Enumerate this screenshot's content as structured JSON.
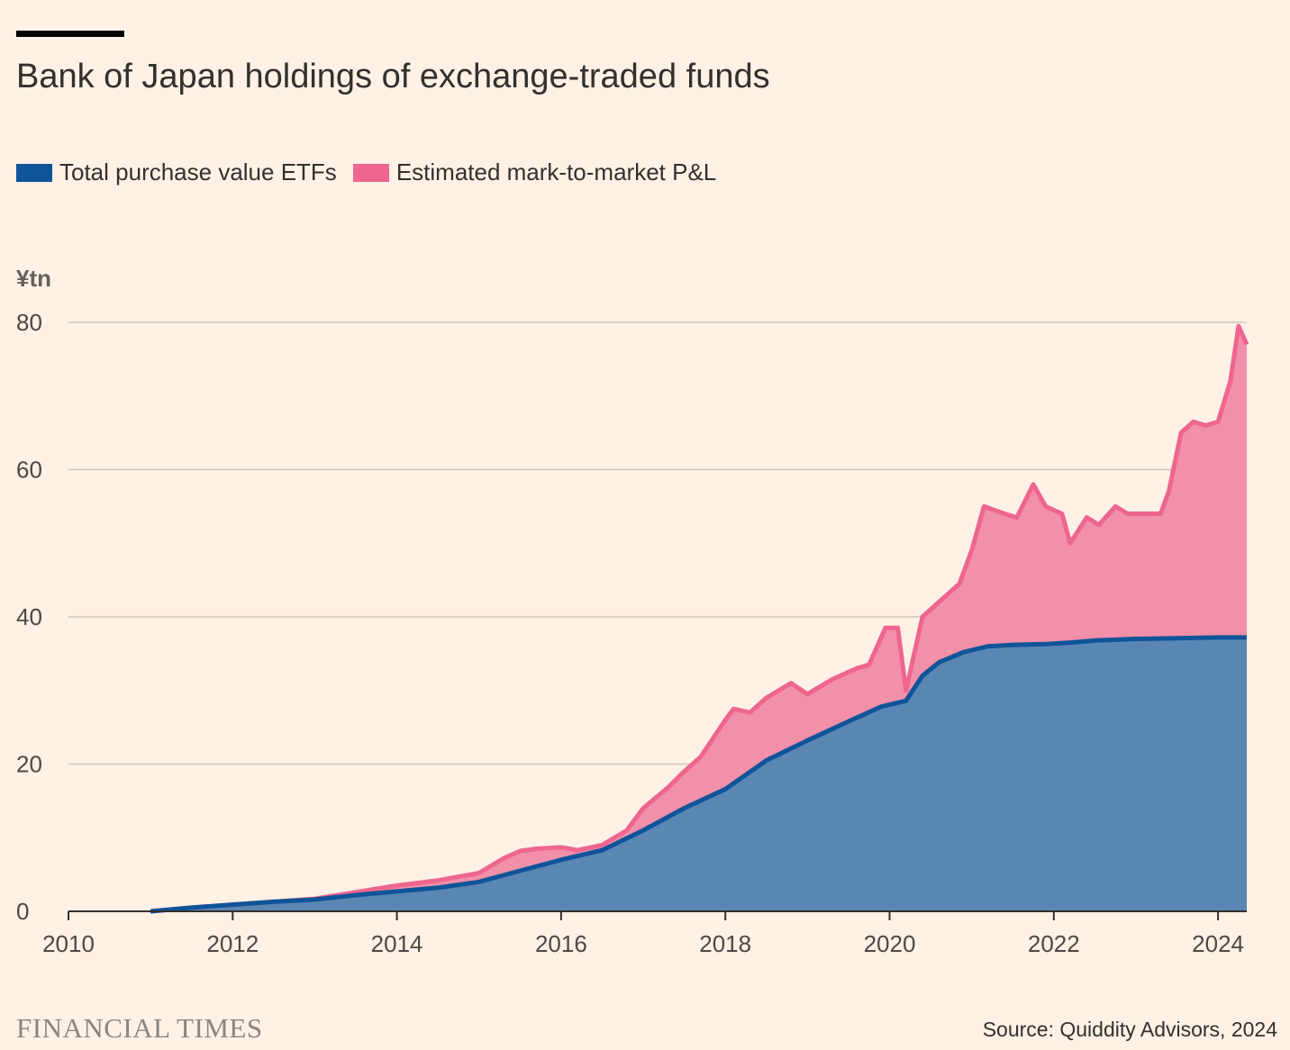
{
  "title": "Bank of Japan holdings of exchange-traded funds",
  "legend": {
    "purchase_label": "Total purchase value ETFs",
    "pnl_label": "Estimated mark-to-market P&L"
  },
  "colors": {
    "background": "#FFF1E5",
    "purchase_fill": "#5A86B3",
    "purchase_line": "#0F5499",
    "pnl_fill": "#F28FA9",
    "pnl_line": "#EE6690",
    "grid": "#CEC6B9",
    "axis": "#33302E"
  },
  "source": "Source: Quiddity Advisors, 2024",
  "brand": "FINANCIAL TIMES",
  "chart_data": {
    "type": "area",
    "ylabel": "¥tn",
    "xlabel": "",
    "ylim": [
      0,
      80
    ],
    "xlim": [
      2010,
      2024.35
    ],
    "yticks": [
      0,
      20,
      40,
      60,
      80
    ],
    "xticks": [
      2010,
      2012,
      2014,
      2016,
      2018,
      2020,
      2022,
      2024
    ],
    "grid": true,
    "legend_position": "top-left",
    "stacked": false,
    "series": [
      {
        "name": "Total purchase value ETFs",
        "x": [
          2011.0,
          2011.5,
          2012.0,
          2012.5,
          2013.0,
          2013.5,
          2014.0,
          2014.5,
          2015.0,
          2015.5,
          2016.0,
          2016.5,
          2017.0,
          2017.5,
          2018.0,
          2018.5,
          2019.0,
          2019.5,
          2019.9,
          2020.2,
          2020.4,
          2020.6,
          2020.9,
          2021.2,
          2021.5,
          2021.9,
          2022.2,
          2022.5,
          2023.0,
          2023.5,
          2024.0,
          2024.35
        ],
        "values": [
          0.0,
          0.5,
          0.9,
          1.3,
          1.6,
          2.2,
          2.7,
          3.2,
          4.0,
          5.5,
          7.0,
          8.3,
          11.0,
          14.0,
          16.6,
          20.5,
          23.2,
          25.8,
          27.8,
          28.6,
          32.0,
          33.8,
          35.2,
          36.0,
          36.2,
          36.3,
          36.5,
          36.8,
          37.0,
          37.1,
          37.2,
          37.2
        ]
      },
      {
        "name": "Estimated mark-to-market P&L",
        "x": [
          2011.0,
          2011.5,
          2012.0,
          2012.5,
          2013.0,
          2013.5,
          2014.0,
          2014.5,
          2015.0,
          2015.3,
          2015.5,
          2015.7,
          2016.0,
          2016.2,
          2016.5,
          2016.8,
          2017.0,
          2017.3,
          2017.5,
          2017.7,
          2018.0,
          2018.1,
          2018.3,
          2018.5,
          2018.8,
          2019.0,
          2019.3,
          2019.6,
          2019.75,
          2019.95,
          2020.1,
          2020.2,
          2020.4,
          2020.6,
          2020.85,
          2021.0,
          2021.15,
          2021.4,
          2021.55,
          2021.75,
          2021.9,
          2022.1,
          2022.2,
          2022.4,
          2022.55,
          2022.75,
          2022.9,
          2023.1,
          2023.3,
          2023.4,
          2023.55,
          2023.7,
          2023.85,
          2024.0,
          2024.15,
          2024.25,
          2024.35
        ],
        "values": [
          0.0,
          0.5,
          0.9,
          1.3,
          1.7,
          2.6,
          3.5,
          4.2,
          5.2,
          7.2,
          8.2,
          8.5,
          8.7,
          8.3,
          9.0,
          11.0,
          14.0,
          16.8,
          19.0,
          21.0,
          26.0,
          27.5,
          27.0,
          29.0,
          31.0,
          29.5,
          31.5,
          33.0,
          33.5,
          38.5,
          38.5,
          30.0,
          40.0,
          42.0,
          44.5,
          49.0,
          55.0,
          54.0,
          53.5,
          58.0,
          55.0,
          54.0,
          50.0,
          53.5,
          52.5,
          55.0,
          54.0,
          54.0,
          54.0,
          57.0,
          65.0,
          66.5,
          66.0,
          66.5,
          72.0,
          79.5,
          77.0
        ]
      }
    ]
  }
}
